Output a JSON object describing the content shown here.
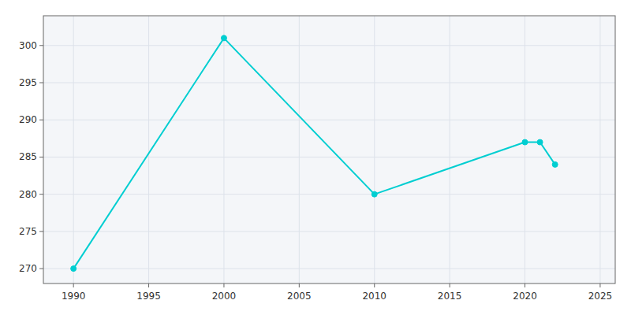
{
  "chart_data": {
    "type": "line",
    "x": [
      1990,
      2000,
      2010,
      2020,
      2021,
      2022
    ],
    "values": [
      270,
      301,
      280,
      287,
      287,
      284
    ],
    "color": "#00CED1",
    "marker": "circle",
    "xlim": [
      1988,
      2026
    ],
    "ylim": [
      268,
      304
    ],
    "xticks": [
      1990,
      1995,
      2000,
      2005,
      2010,
      2015,
      2020,
      2025
    ],
    "yticks": [
      270,
      275,
      280,
      285,
      290,
      295,
      300
    ],
    "grid": true
  }
}
